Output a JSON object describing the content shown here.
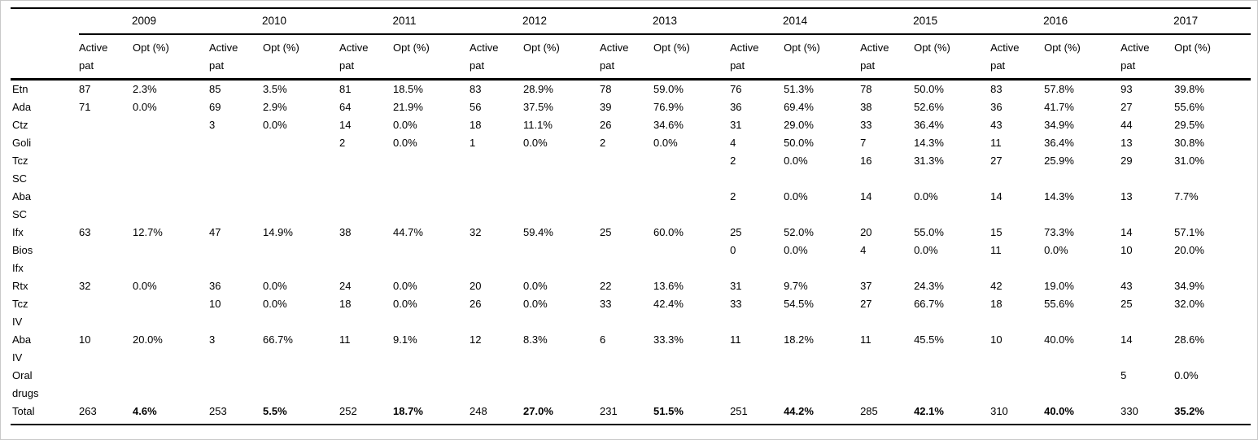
{
  "table": {
    "years": [
      "2009",
      "2010",
      "2011",
      "2012",
      "2013",
      "2014",
      "2015",
      "2016",
      "2017"
    ],
    "subheader": {
      "active": "Active\npat",
      "opt": "Opt (%)"
    },
    "rows": [
      {
        "label": "Etn",
        "cells": [
          "87",
          "2.3%",
          "85",
          "3.5%",
          "81",
          "18.5%",
          "83",
          "28.9%",
          "78",
          "59.0%",
          "76",
          "51.3%",
          "78",
          "50.0%",
          "83",
          "57.8%",
          "93",
          "39.8%"
        ]
      },
      {
        "label": "Ada",
        "cells": [
          "71",
          "0.0%",
          "69",
          "2.9%",
          "64",
          "21.9%",
          "56",
          "37.5%",
          "39",
          "76.9%",
          "36",
          "69.4%",
          "38",
          "52.6%",
          "36",
          "41.7%",
          "27",
          "55.6%"
        ]
      },
      {
        "label": "Ctz",
        "cells": [
          "",
          "",
          "3",
          "0.0%",
          "14",
          "0.0%",
          "18",
          "11.1%",
          "26",
          "34.6%",
          "31",
          "29.0%",
          "33",
          "36.4%",
          "43",
          "34.9%",
          "44",
          "29.5%"
        ]
      },
      {
        "label": "Goli",
        "cells": [
          "",
          "",
          "",
          "",
          "2",
          "0.0%",
          "1",
          "0.0%",
          "2",
          "0.0%",
          "4",
          "50.0%",
          "7",
          "14.3%",
          "11",
          "36.4%",
          "13",
          "30.8%"
        ]
      },
      {
        "label": "Tcz\nSC",
        "cells": [
          "",
          "",
          "",
          "",
          "",
          "",
          "",
          "",
          "",
          "",
          "2",
          "0.0%",
          "16",
          "31.3%",
          "27",
          "25.9%",
          "29",
          "31.0%"
        ]
      },
      {
        "label": "Aba\nSC",
        "cells": [
          "",
          "",
          "",
          "",
          "",
          "",
          "",
          "",
          "",
          "",
          "2",
          "0.0%",
          "14",
          "0.0%",
          "14",
          "14.3%",
          "13",
          "7.7%"
        ]
      },
      {
        "label": "Ifx",
        "cells": [
          "63",
          "12.7%",
          "47",
          "14.9%",
          "38",
          "44.7%",
          "32",
          "59.4%",
          "25",
          "60.0%",
          "25",
          "52.0%",
          "20",
          "55.0%",
          "15",
          "73.3%",
          "14",
          "57.1%"
        ]
      },
      {
        "label": "Bios\nIfx",
        "cells": [
          "",
          "",
          "",
          "",
          "",
          "",
          "",
          "",
          "",
          "",
          "0",
          "0.0%",
          "4",
          "0.0%",
          "11",
          "0.0%",
          "10",
          "20.0%"
        ]
      },
      {
        "label": "Rtx",
        "cells": [
          "32",
          "0.0%",
          "36",
          "0.0%",
          "24",
          "0.0%",
          "20",
          "0.0%",
          "22",
          "13.6%",
          "31",
          "9.7%",
          "37",
          "24.3%",
          "42",
          "19.0%",
          "43",
          "34.9%"
        ]
      },
      {
        "label": "Tcz\nIV",
        "cells": [
          "",
          "",
          "10",
          "0.0%",
          "18",
          "0.0%",
          "26",
          "0.0%",
          "33",
          "42.4%",
          "33",
          "54.5%",
          "27",
          "66.7%",
          "18",
          "55.6%",
          "25",
          "32.0%"
        ]
      },
      {
        "label": "Aba\nIV",
        "cells": [
          "10",
          "20.0%",
          "3",
          "66.7%",
          "11",
          "9.1%",
          "12",
          "8.3%",
          "6",
          "33.3%",
          "11",
          "18.2%",
          "11",
          "45.5%",
          "10",
          "40.0%",
          "14",
          "28.6%"
        ]
      },
      {
        "label": "Oral\ndrugs",
        "cells": [
          "",
          "",
          "",
          "",
          "",
          "",
          "",
          "",
          "",
          "",
          "",
          "",
          "",
          "",
          "",
          "",
          "5",
          "0.0%"
        ]
      },
      {
        "label": "Total",
        "is_total": true,
        "cells": [
          "263",
          "4.6%",
          "253",
          "5.5%",
          "252",
          "18.7%",
          "248",
          "27.0%",
          "231",
          "51.5%",
          "251",
          "44.2%",
          "285",
          "42.1%",
          "310",
          "40.0%",
          "330",
          "35.2%"
        ]
      }
    ]
  }
}
